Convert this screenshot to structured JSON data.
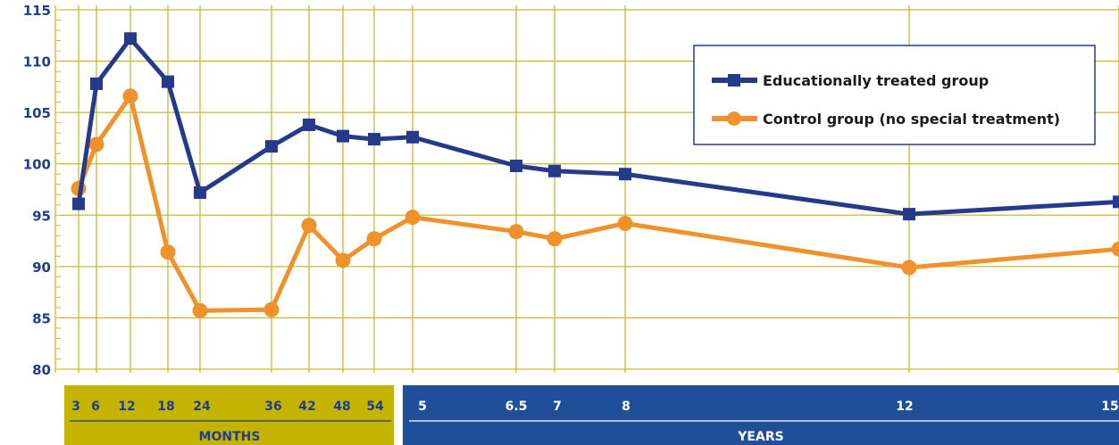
{
  "chart_data": {
    "type": "line",
    "y_ticks": [
      "80",
      "85",
      "90",
      "95",
      "100",
      "105",
      "110",
      "115"
    ],
    "ylim": [
      80,
      115
    ],
    "x_ticks_months": [
      "3",
      "6",
      "12",
      "18",
      "24",
      "36",
      "42",
      "48",
      "54"
    ],
    "x_ticks_years": [
      "5",
      "6.5",
      "7",
      "8",
      "12",
      "15"
    ],
    "x_band_months_label": "MONTHS",
    "x_band_years_label": "YEARS",
    "x": [
      "3 mo",
      "6 mo",
      "12 mo",
      "18 mo",
      "24 mo",
      "36 mo",
      "42 mo",
      "48 mo",
      "54 mo",
      "5 yr",
      "6.5 yr",
      "7 yr",
      "8 yr",
      "12 yr",
      "15 yr"
    ],
    "series": [
      {
        "name": "Educationally treated group",
        "color": "#263a8c",
        "marker": "square",
        "values": [
          96.1,
          107.8,
          112.2,
          108.0,
          97.2,
          101.7,
          103.8,
          102.7,
          102.4,
          102.6,
          99.8,
          99.3,
          99.0,
          95.1,
          96.3
        ]
      },
      {
        "name": "Control group (no special treatment)",
        "color": "#f0922b",
        "marker": "circle",
        "values": [
          97.6,
          101.9,
          106.6,
          91.4,
          85.7,
          85.8,
          94.0,
          90.6,
          92.7,
          94.8,
          93.4,
          92.7,
          94.2,
          89.9,
          91.7
        ]
      }
    ],
    "grid": true,
    "legend_position": "top-right"
  }
}
